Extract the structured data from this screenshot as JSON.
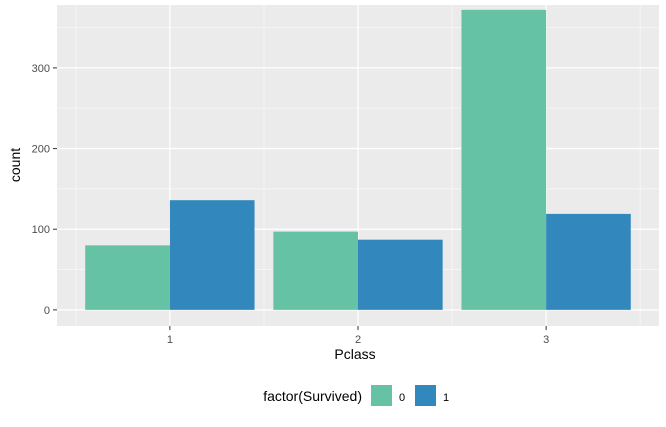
{
  "chart_data": {
    "type": "bar",
    "title": "",
    "xlabel": "Pclass",
    "ylabel": "count",
    "categories": [
      "1",
      "2",
      "3"
    ],
    "ylim": [
      -20,
      378
    ],
    "yticks": [
      0,
      100,
      200,
      300
    ],
    "grid": true,
    "legend": {
      "title": "factor(Survived)",
      "placement": "bottom"
    },
    "series": [
      {
        "name": "0",
        "color": "#66c2a5",
        "values": [
          80,
          97,
          372
        ]
      },
      {
        "name": "1",
        "color": "#3288bd",
        "values": [
          136,
          87,
          119
        ]
      }
    ]
  }
}
